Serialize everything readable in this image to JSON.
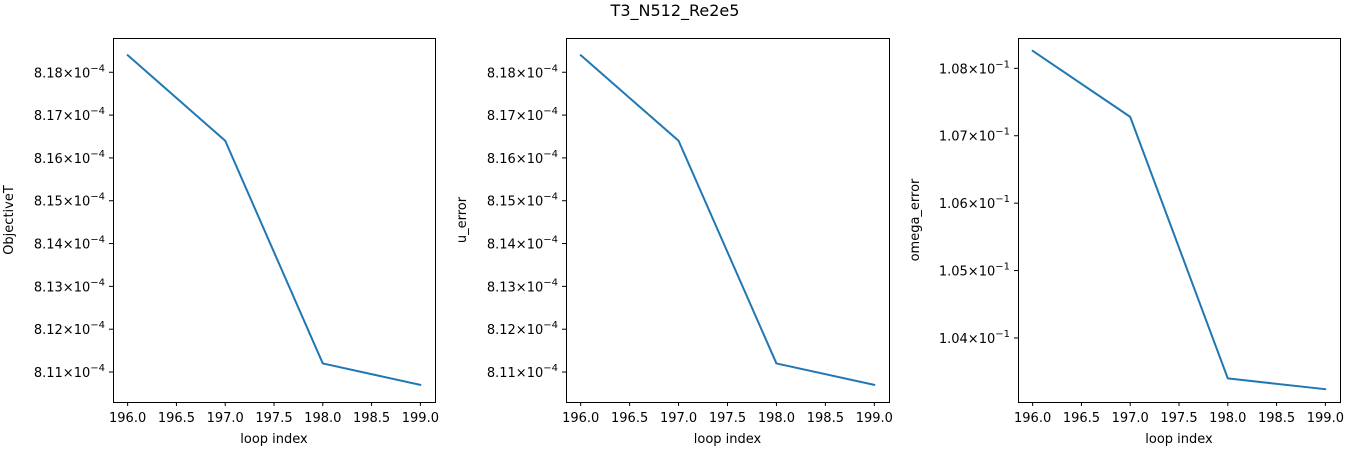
{
  "title": "T3_N512_Re2e5",
  "chart_data": [
    {
      "type": "line",
      "xlabel": "loop index",
      "ylabel": "ObjectiveT",
      "x": [
        196,
        197,
        198,
        199
      ],
      "y": [
        0.0008184,
        0.0008164,
        0.0008112,
        0.0008107
      ],
      "xlim": [
        195.85,
        199.15
      ],
      "ylim": [
        0.0008103,
        0.0008188
      ],
      "xticks": [
        196.0,
        196.5,
        197.0,
        197.5,
        198.0,
        198.5,
        199.0
      ],
      "xtick_labels": [
        "196.0",
        "196.5",
        "197.0",
        "197.5",
        "198.0",
        "198.5",
        "199.0"
      ],
      "yticks": [
        0.000811,
        0.000812,
        0.000813,
        0.000814,
        0.000815,
        0.000816,
        0.000817,
        0.000818
      ],
      "ytick_mantissas": [
        "8.11",
        "8.12",
        "8.13",
        "8.14",
        "8.15",
        "8.16",
        "8.17",
        "8.18"
      ],
      "ytick_exponent": "−4",
      "ytick_base": "×10",
      "color": "#1f77b4"
    },
    {
      "type": "line",
      "xlabel": "loop index",
      "ylabel": "u_error",
      "x": [
        196,
        197,
        198,
        199
      ],
      "y": [
        0.0008184,
        0.0008164,
        0.0008112,
        0.0008107
      ],
      "xlim": [
        195.85,
        199.15
      ],
      "ylim": [
        0.0008103,
        0.0008188
      ],
      "xticks": [
        196.0,
        196.5,
        197.0,
        197.5,
        198.0,
        198.5,
        199.0
      ],
      "xtick_labels": [
        "196.0",
        "196.5",
        "197.0",
        "197.5",
        "198.0",
        "198.5",
        "199.0"
      ],
      "yticks": [
        0.000811,
        0.000812,
        0.000813,
        0.000814,
        0.000815,
        0.000816,
        0.000817,
        0.000818
      ],
      "ytick_mantissas": [
        "8.11",
        "8.12",
        "8.13",
        "8.14",
        "8.15",
        "8.16",
        "8.17",
        "8.18"
      ],
      "ytick_exponent": "−4",
      "ytick_base": "×10",
      "color": "#1f77b4"
    },
    {
      "type": "line",
      "xlabel": "loop index",
      "ylabel": "omega_error",
      "x": [
        196,
        197,
        198,
        199
      ],
      "y": [
        0.10826,
        0.10728,
        0.1034,
        0.10324
      ],
      "xlim": [
        195.85,
        199.15
      ],
      "ylim": [
        0.10305,
        0.10845
      ],
      "xticks": [
        196.0,
        196.5,
        197.0,
        197.5,
        198.0,
        198.5,
        199.0
      ],
      "xtick_labels": [
        "196.0",
        "196.5",
        "197.0",
        "197.5",
        "198.0",
        "198.5",
        "199.0"
      ],
      "yticks": [
        0.104,
        0.105,
        0.106,
        0.107,
        0.108
      ],
      "ytick_mantissas": [
        "1.04",
        "1.05",
        "1.06",
        "1.07",
        "1.08"
      ],
      "ytick_exponent": "−1",
      "ytick_base": "×10",
      "color": "#1f77b4"
    }
  ]
}
